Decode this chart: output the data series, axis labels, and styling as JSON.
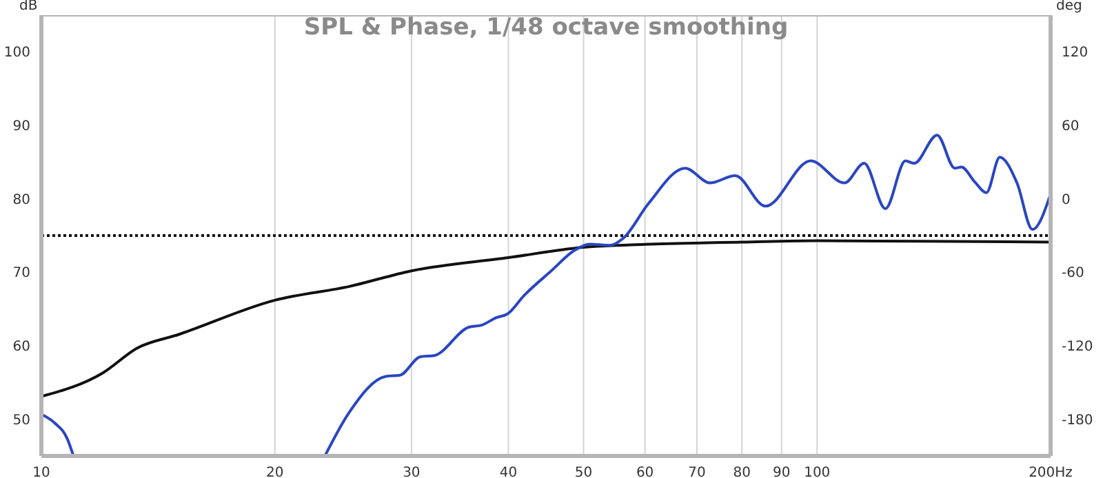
{
  "chart_data": {
    "type": "line",
    "title": "SPL & Phase, 1/48 octave smoothing",
    "ylabel": "dB",
    "y2label": "deg",
    "log": "x",
    "grid": true,
    "line_style": "solid",
    "marker": "none",
    "xlim": [
      10,
      200
    ],
    "xticks": [
      10,
      20,
      30,
      40,
      50,
      60,
      70,
      80,
      90,
      100,
      {
        "value": 200,
        "label": "200Hz"
      }
    ],
    "ylim": [
      45,
      105
    ],
    "yticks": [
      50,
      60,
      70,
      80,
      90,
      100
    ],
    "y2lim": [
      -210,
      150
    ],
    "y2ticks": [
      -180,
      -120,
      -60,
      0,
      60,
      120
    ],
    "ref_lines": [
      {
        "axis": "y",
        "value": 75,
        "color": "#111111",
        "line_style": "dotted"
      }
    ],
    "series": [
      {
        "color": "#111111",
        "x": [
          10,
          12,
          13.3,
          15,
          20,
          25,
          30,
          40,
          50,
          60,
          80,
          100,
          150,
          200
        ],
        "values": [
          53.1,
          56.3,
          59.7,
          61.5,
          66.2,
          68.1,
          70.2,
          72,
          73.4,
          73.8,
          74.1,
          74.3,
          74.2,
          74.1
        ]
      },
      {
        "color": "#2a46c2",
        "axis": "y2",
        "x": [
          10,
          10.4,
          10.8,
          11,
          16,
          23.2,
          24.9,
          27.8,
          29,
          30.8,
          32.1,
          35.5,
          37,
          38.6,
          39.9,
          41.9,
          45.4,
          48.7,
          50.9,
          54.1,
          56.3,
          60.6,
          67.6,
          72.8,
          78.4,
          85.8,
          98.1,
          108.5,
          115,
          122.5,
          130,
          133.4,
          142.8,
          150.5,
          153.5,
          159.6,
          165.3,
          172,
          181,
          189.5,
          200
        ],
        "values": [
          -176,
          -183,
          -196,
          -210,
          null,
          -210,
          -175,
          -145,
          -144,
          -129,
          -128,
          -105,
          -103,
          -97,
          -94,
          -79,
          -59,
          -42,
          -37,
          -38,
          -32,
          -4,
          25,
          13,
          19,
          -6,
          31,
          13,
          29,
          -8,
          31,
          29,
          52,
          25,
          26,
          14,
          5,
          34,
          13,
          -25,
          4
        ]
      }
    ]
  }
}
